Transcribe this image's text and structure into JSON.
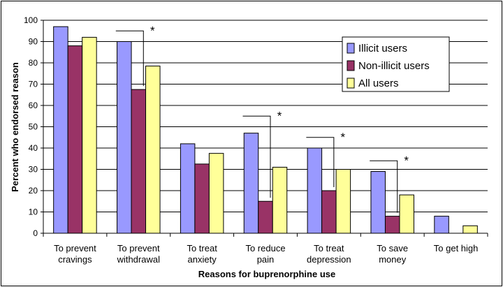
{
  "chart_data": {
    "type": "bar",
    "title": "",
    "xlabel": "Reasons for buprenorphine use",
    "ylabel": "Percent who endorsed reason",
    "ylim": [
      0,
      100
    ],
    "yticks": [
      0,
      10,
      20,
      30,
      40,
      50,
      60,
      70,
      80,
      90,
      100
    ],
    "grid": "horizontal",
    "legend_position": "top-right",
    "categories": [
      [
        "To prevent",
        "cravings"
      ],
      [
        "To prevent",
        "withdrawal"
      ],
      [
        "To treat",
        "anxiety"
      ],
      [
        "To reduce",
        "pain"
      ],
      [
        "To treat",
        "depression"
      ],
      [
        "To save",
        "money"
      ],
      [
        "To get high"
      ]
    ],
    "series": [
      {
        "name": "Illicit users",
        "color": "#9999ff",
        "values": [
          97,
          90,
          42,
          47,
          40,
          29,
          8
        ]
      },
      {
        "name": "Non-illicit users",
        "color": "#993366",
        "values": [
          88,
          67.5,
          32.5,
          15,
          20,
          8,
          0
        ]
      },
      {
        "name": "All users",
        "color": "#ffff99",
        "values": [
          92,
          78.5,
          37.5,
          31,
          30,
          18,
          3.5
        ]
      }
    ],
    "annotations": [
      {
        "category": 1,
        "text": "*",
        "from_value": 90,
        "to_value": 67.5,
        "top_value": 95
      },
      {
        "category": 3,
        "text": "*",
        "from_value": 47,
        "to_value": 15,
        "top_value": 55
      },
      {
        "category": 4,
        "text": "*",
        "from_value": 40,
        "to_value": 20,
        "top_value": 45
      },
      {
        "category": 5,
        "text": "*",
        "from_value": 29,
        "to_value": 8,
        "top_value": 34
      }
    ]
  }
}
